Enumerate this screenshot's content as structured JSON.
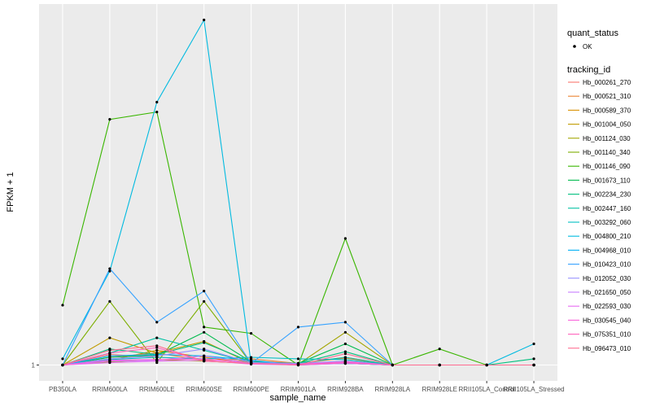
{
  "chart_data": {
    "type": "line",
    "title": "",
    "xlabel": "sample_name",
    "ylabel": "FPKM + 1",
    "y_scale": "log",
    "y_ticks": [
      {
        "value": 1,
        "label": "1"
      }
    ],
    "grid": true,
    "legend_placement": "right",
    "categories": [
      "PB350LA",
      "RRIM600LA",
      "RRIM600LE",
      "RRIM600SE",
      "RRIM600PE",
      "RRIM901LA",
      "RRIM928BA",
      "RRIM928LA",
      "RRIM928LE",
      "RRII105LA_Control",
      "RRII105LA_Stressed"
    ],
    "legend": {
      "status_title": "quant_status",
      "status_items": [
        {
          "label": "OK"
        }
      ],
      "series_title": "tracking_id"
    },
    "series": [
      {
        "name": "Hb_000261_270",
        "color": "#F8766D",
        "values": [
          1.0,
          1.14,
          1.1,
          1.07,
          1.05,
          1.02,
          1.1,
          1.0,
          1.0,
          1.0,
          1.0
        ]
      },
      {
        "name": "Hb_000521_310",
        "color": "#EA8331",
        "values": [
          1.0,
          1.1,
          1.16,
          1.06,
          1.08,
          1.02,
          1.09,
          1.0,
          1.0,
          1.0,
          1.0
        ]
      },
      {
        "name": "Hb_000589_370",
        "color": "#D89000",
        "values": [
          1.0,
          1.06,
          1.2,
          1.1,
          1.03,
          1.01,
          1.05,
          1.0,
          1.0,
          1.0,
          1.0
        ]
      },
      {
        "name": "Hb_001004_050",
        "color": "#C09B00",
        "values": [
          1.0,
          1.4,
          1.16,
          1.34,
          1.02,
          1.01,
          1.02,
          1.0,
          1.0,
          1.0,
          1.0
        ]
      },
      {
        "name": "Hb_001124_030",
        "color": "#A3A500",
        "values": [
          1.0,
          1.04,
          1.07,
          1.05,
          1.02,
          1.01,
          1.5,
          1.0,
          1.0,
          1.0,
          1.0
        ]
      },
      {
        "name": "Hb_001140_340",
        "color": "#7CAE00",
        "values": [
          1.0,
          2.2,
          1.03,
          2.2,
          1.02,
          1.01,
          1.02,
          1.0,
          1.0,
          1.0,
          1.0
        ]
      },
      {
        "name": "Hb_001146_090",
        "color": "#39B600",
        "values": [
          2.1,
          21.0,
          23.0,
          1.6,
          1.48,
          1.0,
          4.8,
          1.0,
          1.22,
          1.0,
          1.0
        ]
      },
      {
        "name": "Hb_001673_110",
        "color": "#00BB4E",
        "values": [
          1.0,
          1.1,
          1.13,
          1.5,
          1.04,
          1.02,
          1.3,
          1.0,
          1.0,
          1.0,
          1.0
        ]
      },
      {
        "name": "Hb_002234_230",
        "color": "#00BF7D",
        "values": [
          1.0,
          1.22,
          1.14,
          1.32,
          1.04,
          1.02,
          1.18,
          1.0,
          1.0,
          1.0,
          1.08
        ]
      },
      {
        "name": "Hb_002447_160",
        "color": "#00C1A3",
        "values": [
          1.0,
          1.16,
          1.4,
          1.2,
          1.03,
          1.02,
          1.1,
          1.0,
          1.0,
          1.0,
          1.0
        ]
      },
      {
        "name": "Hb_003292_060",
        "color": "#00BFC4",
        "values": [
          1.0,
          1.07,
          1.1,
          1.08,
          1.1,
          1.08,
          1.07,
          1.0,
          1.0,
          1.0,
          1.0
        ]
      },
      {
        "name": "Hb_004800_210",
        "color": "#00BAE0",
        "values": [
          1.08,
          3.2,
          26.0,
          72.0,
          1.02,
          1.01,
          1.02,
          1.0,
          1.0,
          1.0,
          1.3
        ]
      },
      {
        "name": "Hb_004968_010",
        "color": "#00B0F6",
        "values": [
          1.0,
          1.12,
          1.14,
          1.12,
          1.06,
          1.0,
          1.02,
          1.0,
          1.0,
          1.0,
          1.0
        ]
      },
      {
        "name": "Hb_010423_010",
        "color": "#35A2FF",
        "values": [
          1.0,
          3.3,
          1.7,
          2.5,
          1.02,
          1.6,
          1.7,
          1.0,
          1.0,
          1.0,
          1.0
        ]
      },
      {
        "name": "Hb_012052_030",
        "color": "#9590FF",
        "values": [
          1.0,
          1.08,
          1.12,
          1.22,
          1.03,
          1.02,
          1.05,
          1.0,
          1.0,
          1.0,
          1.0
        ]
      },
      {
        "name": "Hb_021650_050",
        "color": "#C77CFF",
        "values": [
          1.0,
          1.05,
          1.06,
          1.12,
          1.02,
          1.0,
          1.03,
          1.0,
          1.0,
          1.0,
          1.0
        ]
      },
      {
        "name": "Hb_022593_030",
        "color": "#E76BF3",
        "values": [
          1.0,
          1.03,
          1.05,
          1.06,
          1.01,
          1.0,
          1.02,
          1.0,
          1.0,
          1.0,
          1.0
        ]
      },
      {
        "name": "Hb_030545_040",
        "color": "#FA62DB",
        "values": [
          1.0,
          1.06,
          1.07,
          1.08,
          1.02,
          1.01,
          1.04,
          1.0,
          1.0,
          1.0,
          1.0
        ]
      },
      {
        "name": "Hb_075351_010",
        "color": "#FF62BC",
        "values": [
          1.0,
          1.16,
          1.24,
          1.05,
          1.02,
          1.0,
          1.03,
          1.0,
          1.0,
          1.0,
          1.0
        ]
      },
      {
        "name": "Hb_096473_010",
        "color": "#FF6C91",
        "values": [
          1.0,
          1.2,
          1.27,
          1.05,
          1.02,
          1.0,
          1.15,
          1.0,
          1.0,
          1.0,
          1.0
        ]
      }
    ]
  }
}
